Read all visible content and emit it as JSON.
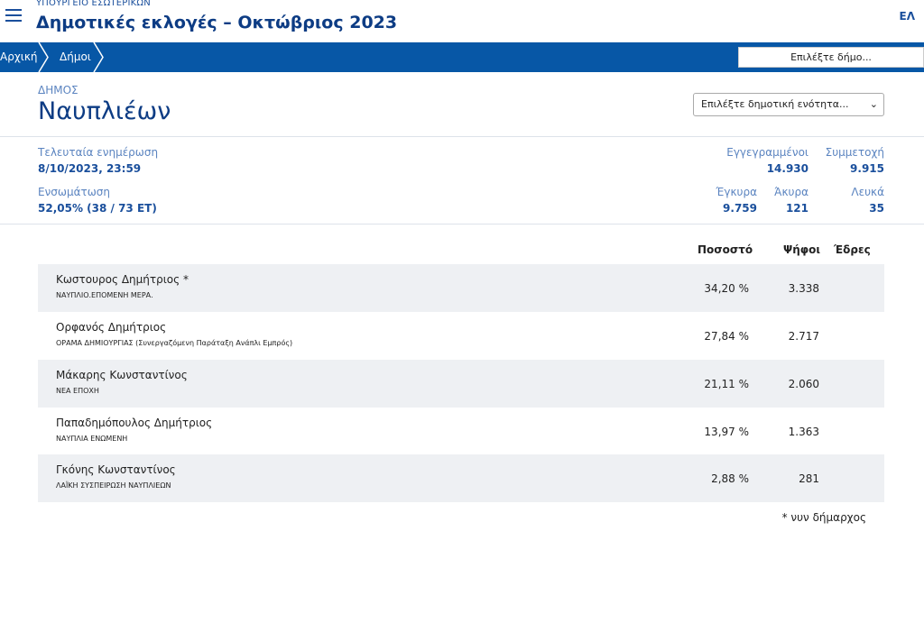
{
  "header": {
    "ministry": "ΥΠΟΥΡΓΕΙΟ ΕΣΩΤΕΡΙΚΩΝ",
    "title": "Δημοτικές εκλογές – Οκτώβριος 2023",
    "lang": "ΕΛ"
  },
  "nav": {
    "breadcrumbs": [
      "Αρχική",
      "Δήμοι"
    ],
    "district_select": "Επιλέξτε δήμο..."
  },
  "municipality": {
    "label": "ΔΗΜΟΣ",
    "name": "Ναυπλιέων",
    "unit_select": "Επιλέξτε δημοτική ενότητα..."
  },
  "stats": {
    "last_update_label": "Τελευταία ενημέρωση",
    "last_update_value": "8/10/2023, 23:59",
    "integration_label": "Ενσωμάτωση",
    "integration_value": "52,05% (38 / 73 ΕΤ)",
    "registered_label": "Εγγεγραμμένοι",
    "registered_value": "14.930",
    "turnout_label": "Συμμετοχή",
    "turnout_value": "9.915",
    "valid_label": "Έγκυρα",
    "valid_value": "9.759",
    "invalid_label": "Άκυρα",
    "invalid_value": "121",
    "blank_label": "Λευκά",
    "blank_value": "35"
  },
  "results": {
    "headers": {
      "pct": "Ποσοστό",
      "votes": "Ψήφοι",
      "seats": "Έδρες"
    },
    "rows": [
      {
        "candidate": "Κωστουρος Δημήτριος *",
        "party": "ΝΑΥΠΛΙΟ.ΕΠΟΜΕΝΗ ΜΕΡΑ.",
        "pct": "34,20 %",
        "votes": "3.338"
      },
      {
        "candidate": "Ορφανός Δημήτριος",
        "party": "ΟΡΑΜΑ ΔΗΜΙΟΥΡΓΙΑΣ (Συνεργαζόμενη Παράταξη Ανάπλι Εμπρός)",
        "pct": "27,84 %",
        "votes": "2.717"
      },
      {
        "candidate": "Μάκαρης Κωνσταντίνος",
        "party": "ΝΕΑ ΕΠΟΧΗ",
        "pct": "21,11 %",
        "votes": "2.060"
      },
      {
        "candidate": "Παπαδημόπουλος Δημήτριος",
        "party": "ΝΑΥΠΛΙΑ ΕΝΩΜΕΝΗ",
        "pct": "13,97 %",
        "votes": "1.363"
      },
      {
        "candidate": "Γκόνης Κωνσταντίνος",
        "party": "ΛΑΪΚΗ ΣΥΣΠΕΙΡΩΣΗ ΝΑΥΠΛΙΕΩΝ",
        "pct": "2,88 %",
        "votes": "281"
      }
    ],
    "footnote": "* νυν δήμαρχος"
  }
}
